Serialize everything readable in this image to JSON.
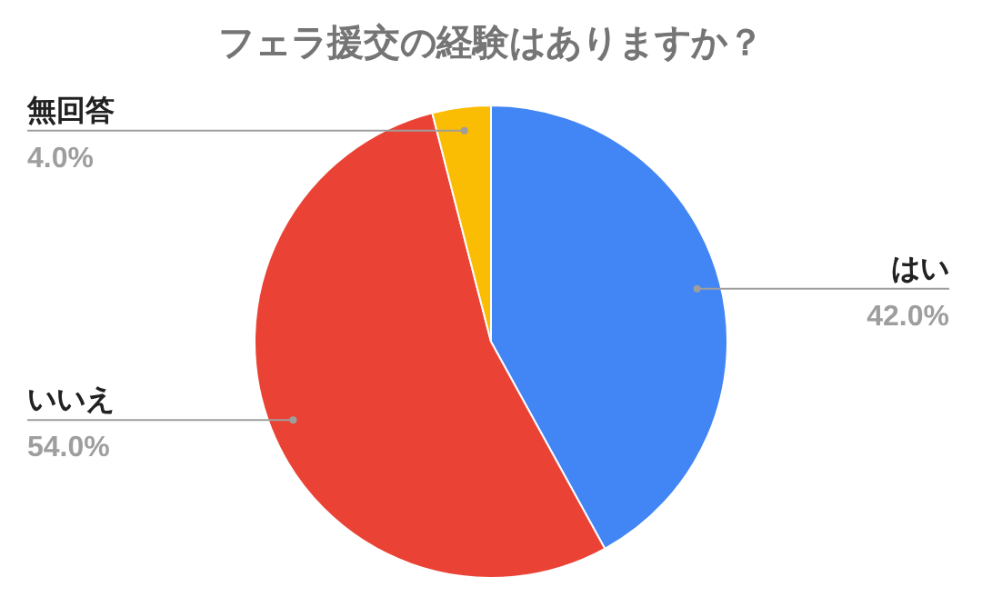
{
  "chart_data": {
    "type": "pie",
    "title": "フェラ援交の経験はありますか？",
    "categories": [
      "はい",
      "いいえ",
      "無回答"
    ],
    "values": [
      42.0,
      54.0,
      4.0
    ],
    "colors": [
      "#4285f4",
      "#ea4335",
      "#fbbc04"
    ],
    "value_labels": [
      "42.0%",
      "54.0%",
      "4.0%"
    ]
  }
}
